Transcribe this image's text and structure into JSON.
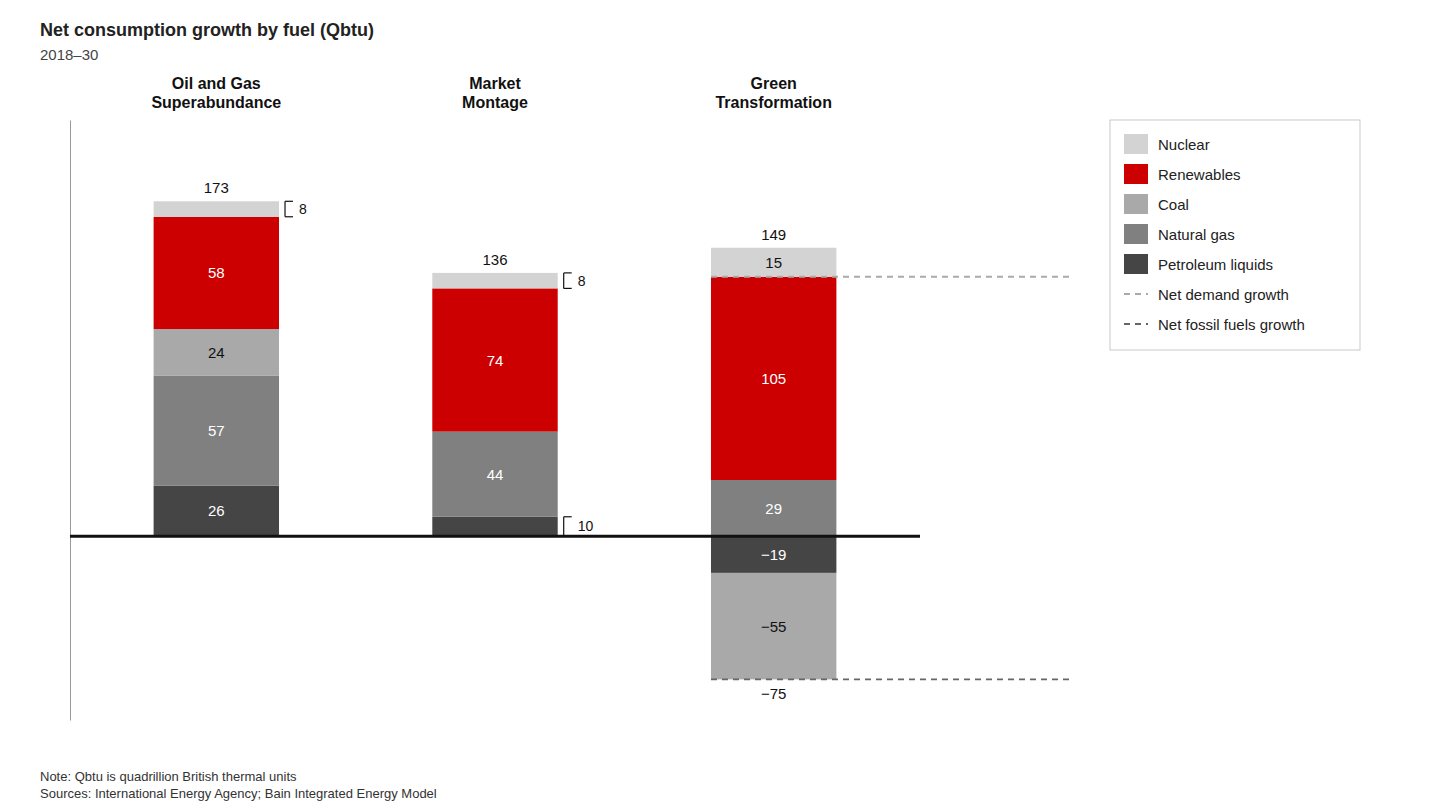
{
  "chart_data": {
    "type": "bar",
    "stacked": true,
    "title": "Net consumption growth by fuel (Qbtu)",
    "subtitle": "2018–30",
    "categories": [
      "Oil and Gas\nSuperabundance",
      "Market\nMontage",
      "Green\nTransformation"
    ],
    "series": [
      {
        "name": "Petroleum liquids",
        "color": "#454545",
        "values": [
          26,
          10,
          -19
        ],
        "value_labels": [
          "26",
          "10",
          "−19"
        ]
      },
      {
        "name": "Natural gas",
        "color": "#808080",
        "values": [
          57,
          44,
          29
        ]
      },
      {
        "name": "Coal",
        "color": "#A9A9A9",
        "values": [
          24,
          null,
          -55
        ],
        "value_labels": [
          "24",
          null,
          "−55"
        ]
      },
      {
        "name": "Renewables",
        "color": "#CC0000",
        "values": [
          58,
          74,
          105
        ]
      },
      {
        "name": "Nuclear",
        "color": "#D3D3D3",
        "values": [
          8,
          8,
          15
        ]
      }
    ],
    "totals": [
      173,
      136,
      149
    ],
    "negative_totals": [
      null,
      null,
      {
        "value": -75,
        "label": "−75"
      }
    ],
    "reference_lines": [
      {
        "name": "Net demand growth",
        "value": 134,
        "color": "#AAAAAA",
        "line_style": "dashed",
        "category": "Green\nTransformation"
      },
      {
        "name": "Net fossil fuels growth",
        "value": -74,
        "color": "#666666",
        "line_style": "dashed",
        "category": "Green\nTransformation"
      }
    ],
    "ylim": [
      -95,
      215
    ],
    "yticks": [],
    "tick_labels": "x",
    "data_labels": true,
    "grid": false,
    "legend": "right",
    "note": "Note: Qbtu is quadrillion British thermal units\nSources: International Energy Agency; Bain Integrated Energy Model"
  }
}
